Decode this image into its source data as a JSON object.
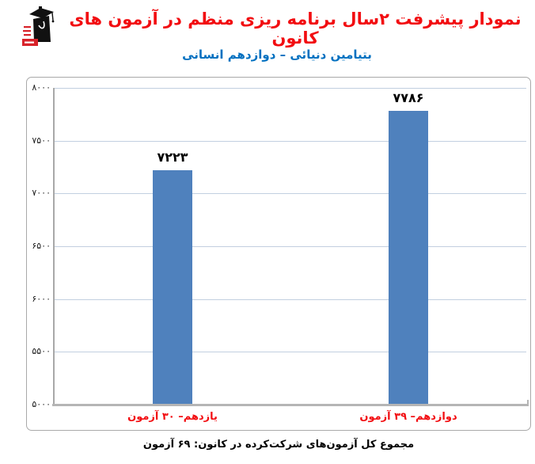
{
  "header": {
    "title": "نمودار پیشرفت ۲سال برنامه ریزی منظم در آزمون های کانون",
    "subtitle": "بتیامین دنیائی – دوازدهم انسانی"
  },
  "chart_data": {
    "type": "bar",
    "title": "نمودار پیشرفت ۲سال برنامه ریزی منظم در آزمون های کانون",
    "subtitle": "بتیامین دنیائی – دوازدهم انسانی",
    "categories": [
      "یازدهم– ۳۰ آزمون",
      "دوازدهم– ۳۹ آزمون"
    ],
    "values": [
      7223,
      7786
    ],
    "value_labels": [
      "۷۲۲۳",
      "۷۷۸۶"
    ],
    "ylim": [
      5000,
      8000
    ],
    "yticks": [
      {
        "value": 8000,
        "label": "۸۰۰۰"
      },
      {
        "value": 7500,
        "label": "۷۵۰۰"
      },
      {
        "value": 7000,
        "label": "۷۰۰۰"
      },
      {
        "value": 6500,
        "label": "۶۵۰۰"
      },
      {
        "value": 6000,
        "label": "۶۰۰۰"
      },
      {
        "value": 5500,
        "label": "۵۵۰۰"
      },
      {
        "value": 5000,
        "label": "۵۰۰۰"
      }
    ],
    "grid": true,
    "legend": false,
    "xlabel": "",
    "ylabel": ""
  },
  "footer": {
    "caption": "مجموع کل آزمون‌های شرکت‌کرده در کانون: ۶۹ آزمون"
  },
  "colors": {
    "title_red": "#f20d11",
    "subtitle_blue": "#0070c0",
    "bar_blue": "#4f81bd",
    "gridline": "#c2cfe0",
    "axis_gray": "#a8a8a8",
    "baseline_gray": "#b5b5b5",
    "border_gray": "#a9a9a9"
  }
}
